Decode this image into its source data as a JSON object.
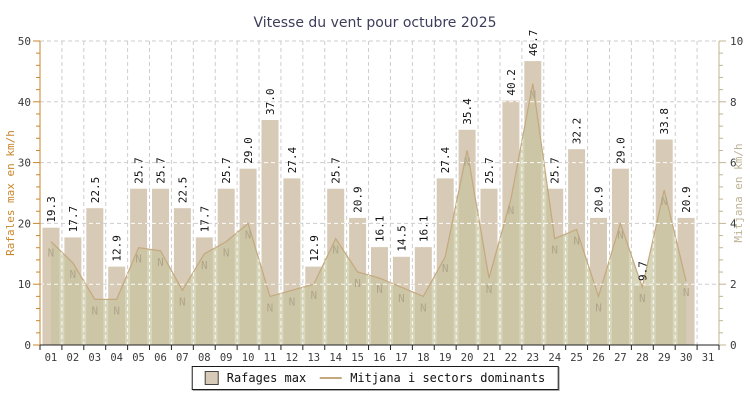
{
  "title": "Vitesse du vent pour octubre 2025",
  "axes": {
    "left_label": "Rafales max en km/h",
    "right_label": "Mitjana en km/h",
    "left_ticks": [
      0,
      10,
      20,
      30,
      40,
      50
    ],
    "right_ticks": [
      0,
      2,
      4,
      6,
      8,
      10
    ]
  },
  "legend": {
    "rafages_label": "Rafages max",
    "mitjana_label": "Mitjana i sectors dominants"
  },
  "colors": {
    "bar": "#d7cab6",
    "area_fill": "#c8c5a0",
    "area_opacity": 0.72,
    "line": "#c4a87e",
    "left_axis": "#c9862b",
    "right_axis": "#c2b493",
    "right_label": "#bcb294",
    "grid": "#cdcdcd",
    "title": "#3d3d5a",
    "sector_letter": "#b0a58a",
    "tick_text": "#3a3a3a",
    "value_text": "#111111",
    "x_axis": "#222222"
  },
  "chart_data": {
    "type": "bar",
    "title": "Vitesse du vent pour octubre 2025",
    "categories": [
      "01",
      "02",
      "03",
      "04",
      "05",
      "06",
      "07",
      "08",
      "09",
      "10",
      "11",
      "12",
      "13",
      "14",
      "15",
      "16",
      "17",
      "18",
      "19",
      "20",
      "21",
      "22",
      "23",
      "24",
      "25",
      "26",
      "27",
      "28",
      "29",
      "30",
      "31"
    ],
    "series": [
      {
        "name": "Rafages max",
        "type": "bar",
        "axis": "left",
        "unit": "km/h",
        "values": [
          19.3,
          17.7,
          22.5,
          12.9,
          25.7,
          25.7,
          22.5,
          17.7,
          25.7,
          29.0,
          37.0,
          27.4,
          12.9,
          25.7,
          20.9,
          16.1,
          14.5,
          16.1,
          27.4,
          35.4,
          25.7,
          40.2,
          46.7,
          25.7,
          32.2,
          20.9,
          29.0,
          9.7,
          33.8,
          20.9,
          null
        ]
      },
      {
        "name": "Mitjana",
        "type": "area",
        "axis": "right",
        "unit": "km/h",
        "values": [
          3.4,
          2.7,
          1.5,
          1.5,
          3.2,
          3.1,
          1.8,
          3.0,
          3.4,
          4.0,
          1.6,
          1.8,
          2.0,
          3.5,
          2.4,
          2.2,
          1.9,
          1.6,
          2.9,
          6.4,
          2.2,
          4.8,
          8.6,
          3.5,
          3.8,
          1.6,
          4.0,
          1.9,
          5.1,
          2.1,
          null
        ]
      },
      {
        "name": "sectors dominants",
        "type": "point-labels",
        "values": [
          "N",
          "N",
          "N",
          "N",
          "N",
          "N",
          "N",
          "N",
          "N",
          "N",
          "N",
          "N",
          "N",
          "N",
          "N",
          "N",
          "N",
          "N",
          "N",
          "N",
          "N",
          "N",
          "N",
          "N",
          "N",
          "N",
          "N",
          "N",
          "N",
          "N",
          null
        ]
      }
    ],
    "left_axis": {
      "label": "Rafales max en km/h",
      "range": [
        0,
        50
      ]
    },
    "right_axis": {
      "label": "Mitjana en km/h",
      "range": [
        0,
        10
      ]
    },
    "xlabel": "",
    "grid": true,
    "legend_position": "bottom"
  }
}
